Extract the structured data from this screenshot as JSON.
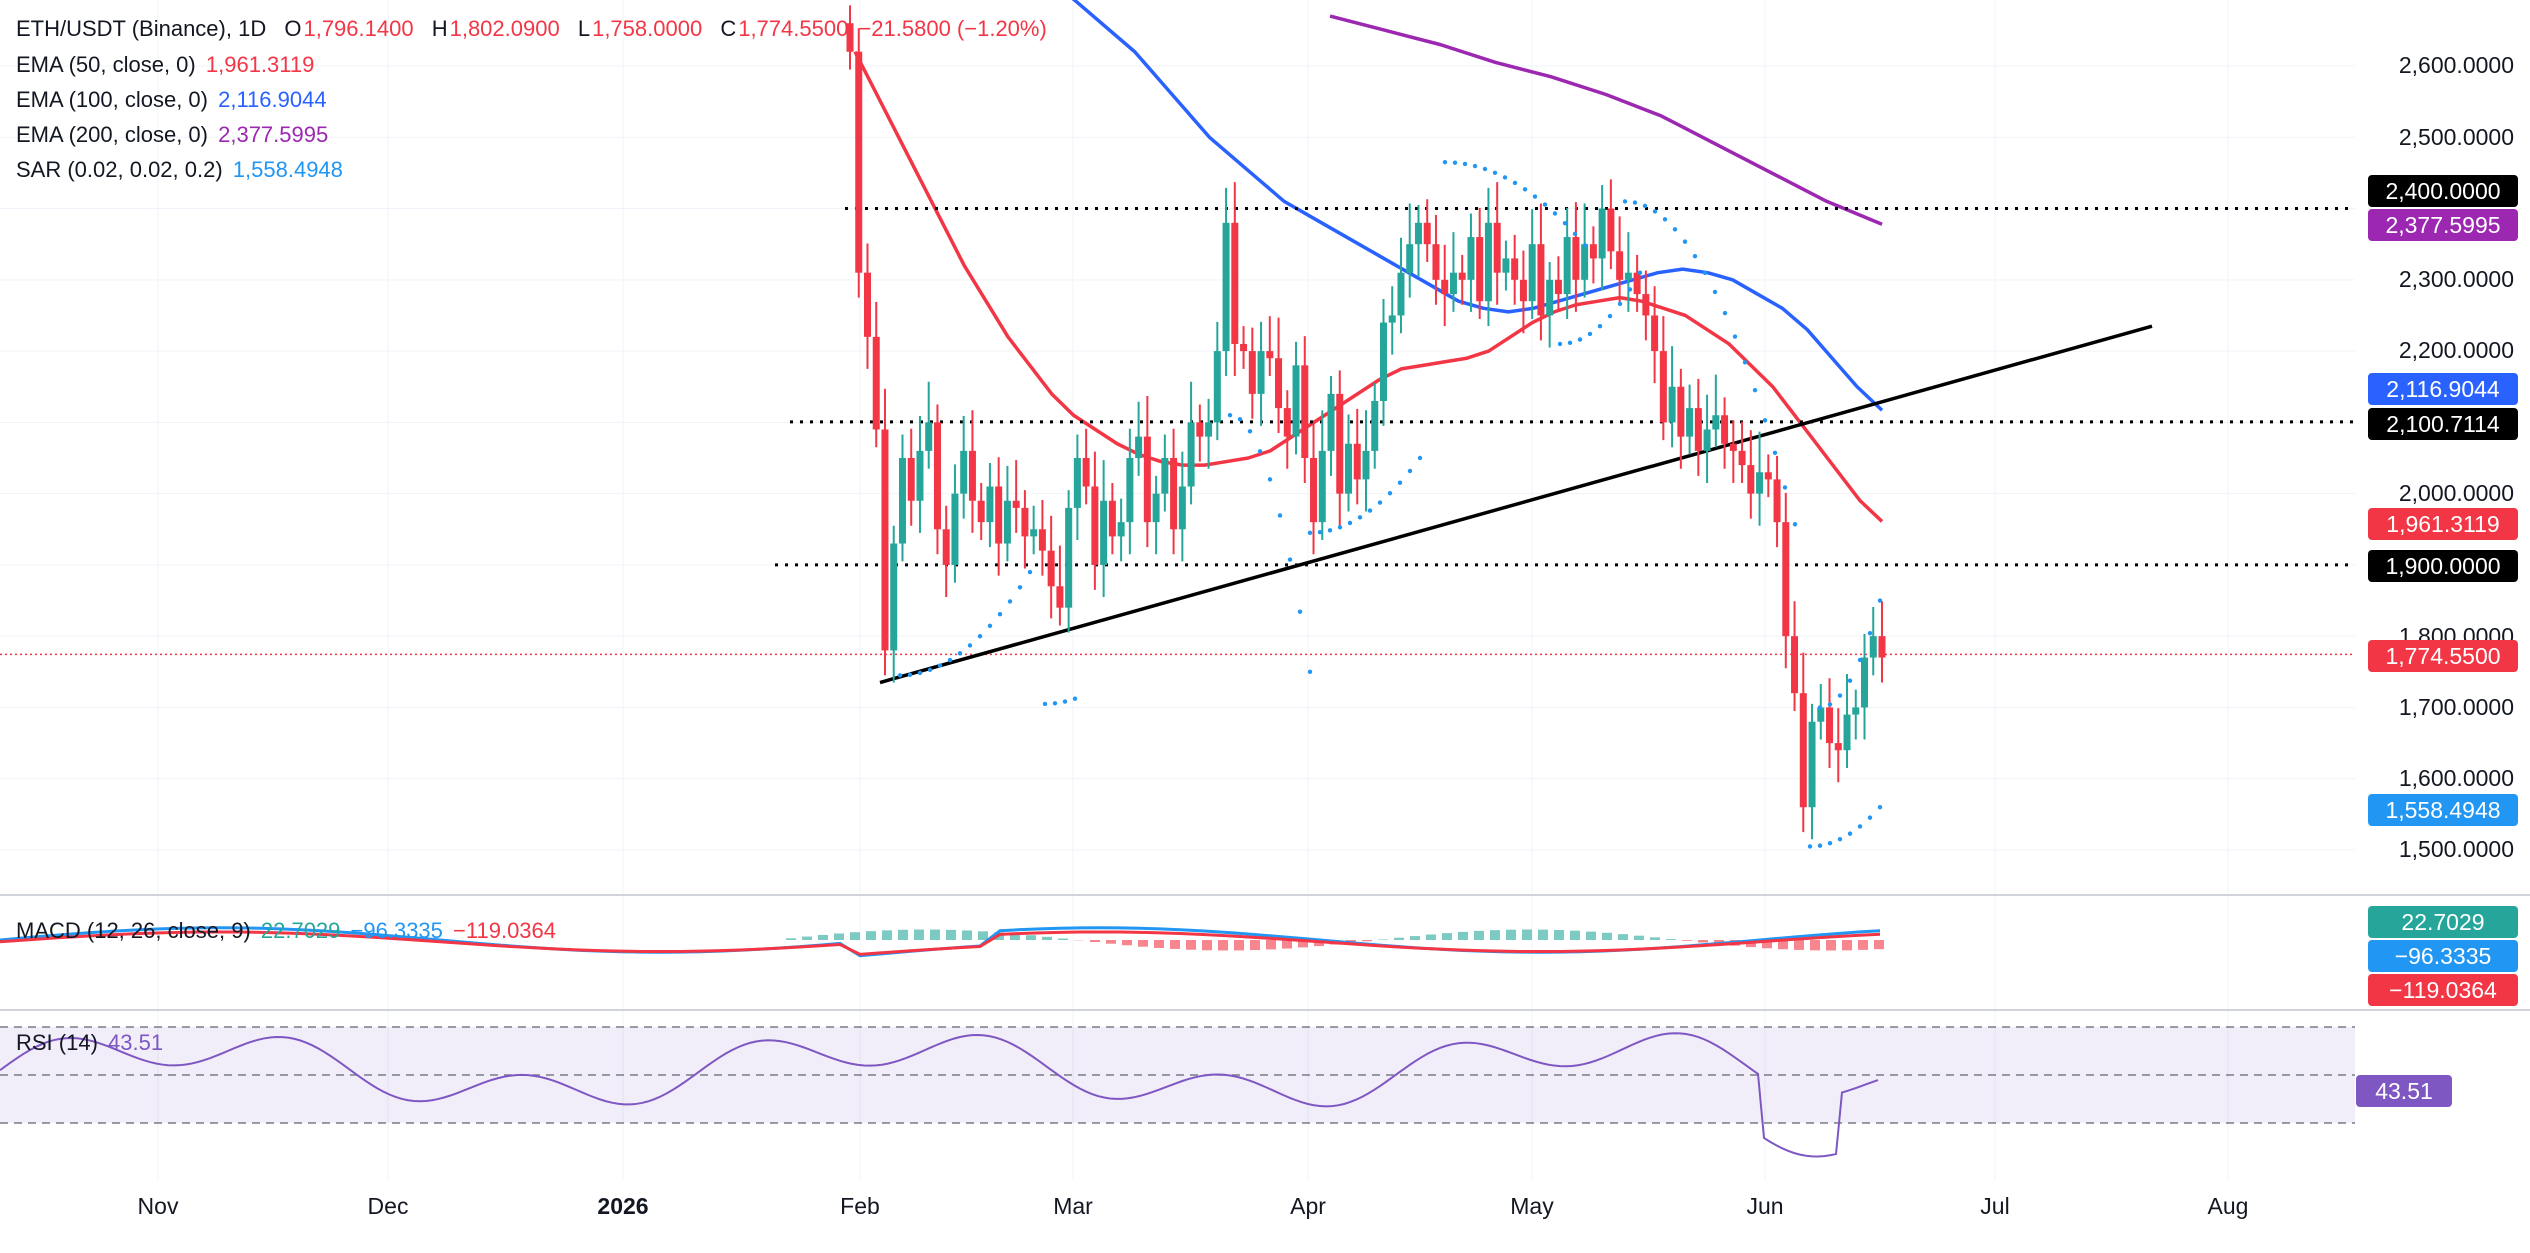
{
  "header": {
    "symbol": "ETH/USDT (Binance), 1D",
    "o_label": "O",
    "o": "1,796.1400",
    "h_label": "H",
    "h": "1,802.0900",
    "l_label": "L",
    "l": "1,758.0000",
    "c_label": "C",
    "c": "1,774.5500",
    "change": "−21.5800 (−1.20%)"
  },
  "indicators": [
    {
      "label": "EMA (50, close, 0)",
      "value": "1,961.3119",
      "color": "#f23645"
    },
    {
      "label": "EMA (100, close, 0)",
      "value": "2,116.9044",
      "color": "#2962ff"
    },
    {
      "label": "EMA (200, close, 0)",
      "value": "2,377.5995",
      "color": "#9c27b0"
    },
    {
      "label": "SAR (0.02, 0.02, 0.2)",
      "value": "1,558.4948",
      "color": "#2196f3"
    }
  ],
  "macd": {
    "label": "MACD (12, 26, close, 9)",
    "hist": "22.7029",
    "macd": "−96.3335",
    "signal": "−119.0364"
  },
  "rsi": {
    "label": "RSI (14)",
    "value": "43.51"
  },
  "price_axis": {
    "ticks": [
      "2,600.0000",
      "2,500.0000",
      "2,300.0000",
      "2,200.0000",
      "2,000.0000",
      "1,800.0000",
      "1,700.0000",
      "1,600.0000",
      "1,500.0000"
    ],
    "tags": [
      {
        "text": "2,400.0000",
        "bg": "#000000"
      },
      {
        "text": "2,377.5995",
        "bg": "#9c27b0"
      },
      {
        "text": "2,116.9044",
        "bg": "#2962ff"
      },
      {
        "text": "2,100.7114",
        "bg": "#000000"
      },
      {
        "text": "1,961.3119",
        "bg": "#f23645"
      },
      {
        "text": "1,900.0000",
        "bg": "#000000"
      },
      {
        "text": "1,774.5500",
        "bg": "#f23645"
      },
      {
        "text": "1,558.4948",
        "bg": "#2196f3"
      }
    ],
    "macd_tags": [
      {
        "text": "22.7029",
        "bg": "#26a69a"
      },
      {
        "text": "−96.3335",
        "bg": "#2196f3"
      },
      {
        "text": "−119.0364",
        "bg": "#f23645"
      }
    ],
    "rsi_tag": {
      "text": "43.51",
      "bg": "#7e57c2"
    }
  },
  "time_axis": [
    "Nov",
    "Dec",
    "2026",
    "Feb",
    "Mar",
    "Apr",
    "May",
    "Jun",
    "Jul",
    "Aug"
  ],
  "chart_data": {
    "type": "candlestick",
    "ylim": [
      1470,
      2680
    ],
    "horizontal_levels": [
      2400.0,
      2100.7114,
      1900.0
    ],
    "current_price": 1774.55,
    "trendline": {
      "from": {
        "x": "2026-02-01",
        "y": 1735
      },
      "to": {
        "x": "2026-06-21",
        "y": 2235
      }
    },
    "candles_close": [
      2620,
      2310,
      2220,
      2090,
      1780,
      1930,
      2050,
      1990,
      2060,
      2100,
      1950,
      1900,
      2000,
      2060,
      1990,
      1960,
      2010,
      1930,
      1990,
      1980,
      1940,
      1950,
      1920,
      1870,
      1840,
      1980,
      2050,
      2010,
      1900,
      1990,
      1940,
      1960,
      2050,
      2080,
      1960,
      2000,
      2050,
      1950,
      2010,
      2100,
      2080,
      2100,
      2200,
      2380,
      2210,
      2200,
      2140,
      2200,
      2190,
      2120,
      2080,
      2180,
      2050,
      1960,
      2060,
      2140,
      2000,
      2070,
      2020,
      2060,
      2130,
      2240,
      2250,
      2310,
      2350,
      2380,
      2350,
      2300,
      2280,
      2310,
      2300,
      2360,
      2270,
      2380,
      2310,
      2330,
      2300,
      2270,
      2350,
      2250,
      2300,
      2280,
      2360,
      2300,
      2350,
      2330,
      2400,
      2340,
      2300,
      2310,
      2280,
      2250,
      2200,
      2100,
      2150,
      2080,
      2120,
      2060,
      2090,
      2110,
      2070,
      2060,
      2040,
      2000,
      2030,
      2020,
      1960,
      1800,
      1720,
      1560,
      1680,
      1700,
      1650,
      1640,
      1690,
      1700,
      1770,
      1800,
      1770
    ],
    "ema50": [
      2620,
      2560,
      2500,
      2440,
      2380,
      2320,
      2270,
      2220,
      2180,
      2140,
      2110,
      2090,
      2070,
      2055,
      2045,
      2040,
      2040,
      2045,
      2050,
      2060,
      2080,
      2100,
      2120,
      2140,
      2160,
      2175,
      2180,
      2185,
      2190,
      2200,
      2220,
      2240,
      2255,
      2265,
      2270,
      2275,
      2270,
      2260,
      2250,
      2230,
      2210,
      2180,
      2150,
      2110,
      2070,
      2030,
      1990,
      1961
    ],
    "ema100": [
      2710,
      2680,
      2650,
      2620,
      2580,
      2540,
      2500,
      2470,
      2440,
      2410,
      2390,
      2370,
      2350,
      2330,
      2310,
      2290,
      2270,
      2260,
      2255,
      2260,
      2270,
      2280,
      2290,
      2300,
      2310,
      2315,
      2310,
      2300,
      2280,
      2260,
      2230,
      2190,
      2150,
      2117
    ],
    "ema200": [
      2670,
      2650,
      2630,
      2605,
      2585,
      2560,
      2530,
      2490,
      2450,
      2410,
      2378
    ],
    "sar_dates": [
      "2026-02-01",
      "2026-06-16"
    ],
    "macd": {
      "macd_last": -96.3335,
      "signal_last": -119.0364,
      "hist_last": 22.7029
    },
    "rsi": {
      "last": 43.51,
      "upper": 70,
      "middle": 50,
      "lower": 30
    }
  }
}
